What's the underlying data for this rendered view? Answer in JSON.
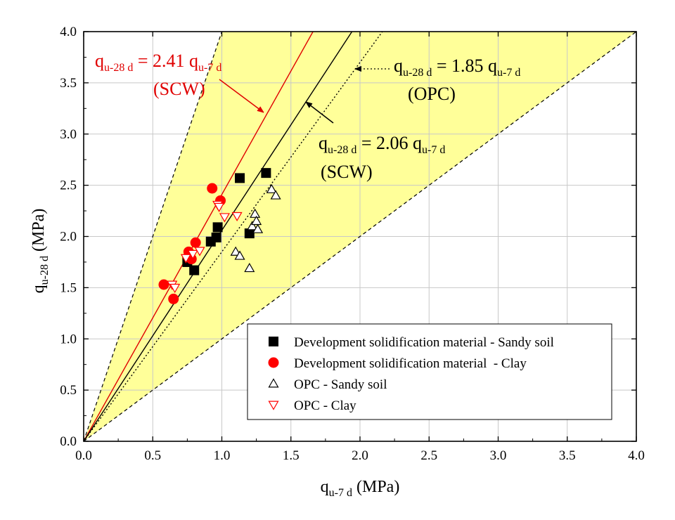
{
  "chart_data": {
    "type": "scatter",
    "xlim": [
      0,
      4.0
    ],
    "ylim": [
      0,
      4.0
    ],
    "x_ticks": [
      "0.0",
      "0.5",
      "1.0",
      "1.5",
      "2.0",
      "2.5",
      "3.0",
      "3.5",
      "4.0"
    ],
    "y_ticks": [
      "0.0",
      "0.5",
      "1.0",
      "1.5",
      "2.0",
      "2.5",
      "3.0",
      "3.5",
      "4.0"
    ],
    "xlabel": {
      "main": "q",
      "sub": "u-7 d",
      "unit": " (MPa)"
    },
    "ylabel": {
      "main": "q",
      "sub": "u-28 d",
      "unit": " (MPa)"
    },
    "grid": true,
    "band": {
      "lower_slope": 1.0,
      "upper_slope": 4.0,
      "fill_color": "#ffff99"
    },
    "fit_lines": [
      {
        "name": "SCW-red",
        "slope": 2.41,
        "color": "#e00000",
        "style": "solid"
      },
      {
        "name": "SCW-black",
        "slope": 2.06,
        "color": "#000000",
        "style": "solid"
      },
      {
        "name": "OPC",
        "slope": 1.85,
        "color": "#000000",
        "style": "dotted"
      }
    ],
    "annotations": [
      {
        "id": "scw-red",
        "color": "#e00000",
        "l1_pre": "q",
        "l1_sub1": "u-28 d",
        "l1_mid": " = 2.41 q",
        "l1_sub2": "u-7 d",
        "l2": "(SCW)"
      },
      {
        "id": "opc",
        "color": "#000000",
        "l1_pre": "q",
        "l1_sub1": "u-28 d",
        "l1_mid": " = 1.85 q",
        "l1_sub2": "u-7 d",
        "l2": "(OPC)"
      },
      {
        "id": "scw-black",
        "color": "#000000",
        "l1_pre": "q",
        "l1_sub1": "u-28 d",
        "l1_mid": " = 2.06 q",
        "l1_sub2": "u-7 d",
        "l2": "(SCW)"
      }
    ],
    "series": [
      {
        "name": "Development solidification material - Sandy soil",
        "marker": "square",
        "fill": "#000000",
        "stroke": "#000000",
        "points": [
          [
            0.75,
            1.75
          ],
          [
            0.8,
            1.67
          ],
          [
            0.92,
            1.95
          ],
          [
            0.96,
            1.99
          ],
          [
            0.97,
            2.09
          ],
          [
            1.13,
            2.57
          ],
          [
            1.2,
            2.03
          ],
          [
            1.32,
            2.62
          ]
        ]
      },
      {
        "name": "Development solidification material  - Clay",
        "marker": "circle",
        "fill": "#ff0000",
        "stroke": "#ff0000",
        "points": [
          [
            0.58,
            1.53
          ],
          [
            0.65,
            1.39
          ],
          [
            0.76,
            1.85
          ],
          [
            0.78,
            1.78
          ],
          [
            0.81,
            1.94
          ],
          [
            0.93,
            2.47
          ],
          [
            0.99,
            2.35
          ]
        ]
      },
      {
        "name": "OPC - Sandy soil",
        "marker": "triangle-up",
        "fill": "#ffffff",
        "stroke": "#000000",
        "points": [
          [
            1.1,
            1.85
          ],
          [
            1.13,
            1.81
          ],
          [
            1.2,
            1.69
          ],
          [
            1.22,
            2.1
          ],
          [
            1.24,
            2.22
          ],
          [
            1.25,
            2.15
          ],
          [
            1.26,
            2.07
          ],
          [
            1.36,
            2.46
          ],
          [
            1.39,
            2.4
          ]
        ]
      },
      {
        "name": "OPC - Clay",
        "marker": "triangle-down",
        "fill": "#ffffff",
        "stroke": "#ff0000",
        "points": [
          [
            0.64,
            1.53
          ],
          [
            0.66,
            1.5
          ],
          [
            0.74,
            1.79
          ],
          [
            0.79,
            1.83
          ],
          [
            0.84,
            1.86
          ],
          [
            0.97,
            2.31
          ],
          [
            0.98,
            2.29
          ],
          [
            1.02,
            2.19
          ],
          [
            1.11,
            2.2
          ]
        ]
      }
    ]
  }
}
